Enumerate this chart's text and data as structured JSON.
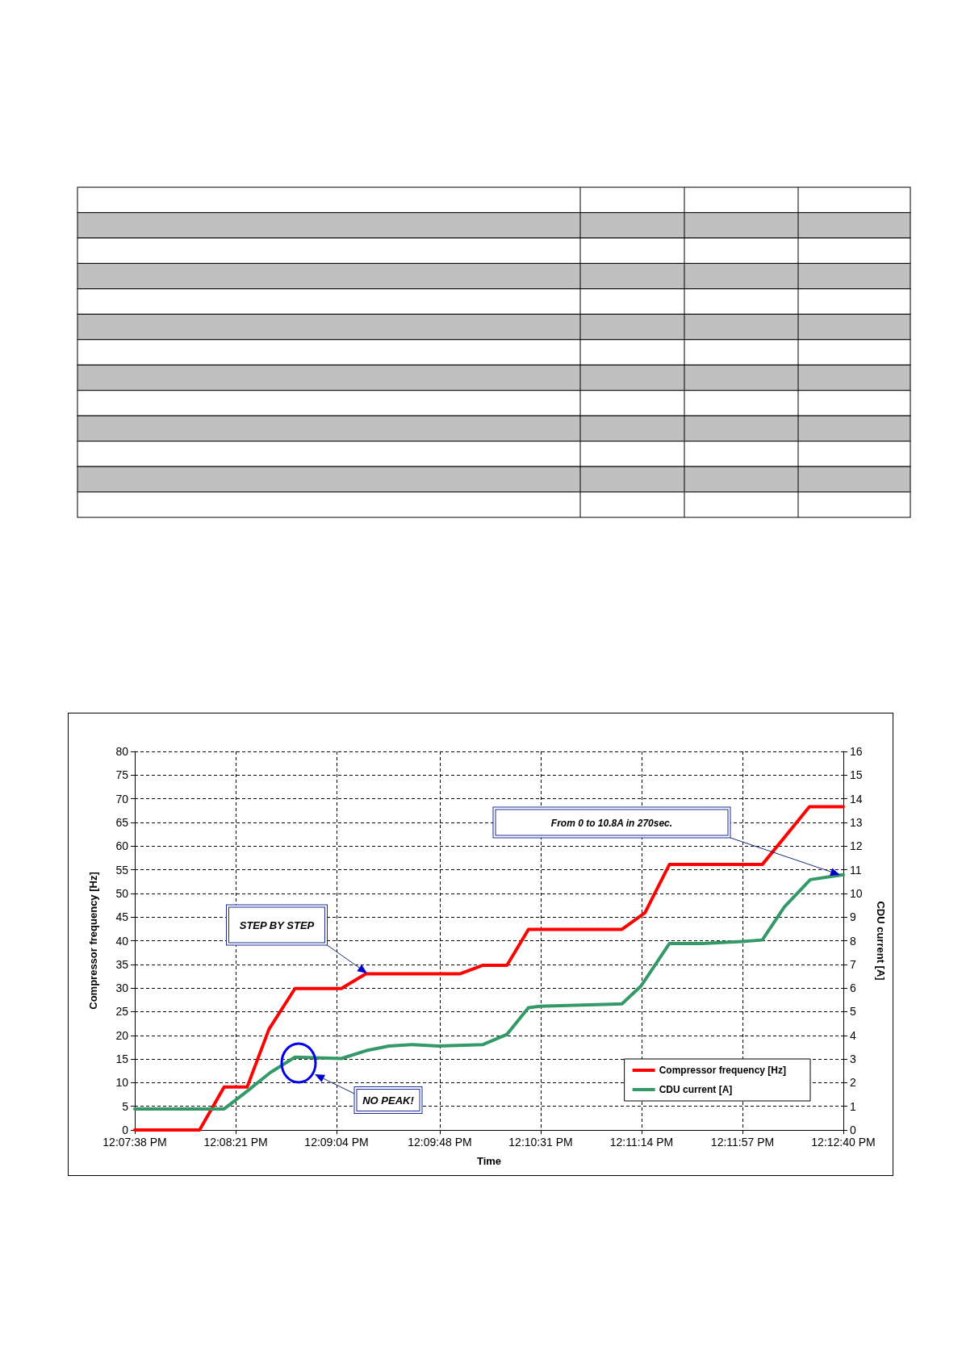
{
  "chart_data": {
    "type": "line",
    "xlabel": "Time",
    "ylabel": "Compressor frequency [Hz]",
    "y2label": "CDU current [A]",
    "xlim": [
      12.12722,
      12.21111
    ],
    "xticks": [
      {
        "value": 12.12722,
        "label": "12:07:38 PM"
      },
      {
        "value": 12.13917,
        "label": "12:08:21 PM"
      },
      {
        "value": 12.15111,
        "label": "12:09:04 PM"
      },
      {
        "value": 12.16333,
        "label": "12:09:48 PM"
      },
      {
        "value": 12.17528,
        "label": "12:10:31 PM"
      },
      {
        "value": 12.18722,
        "label": "12:11:14 PM"
      },
      {
        "value": 12.19917,
        "label": "12:11:57 PM"
      },
      {
        "value": 12.21111,
        "label": "12:12:40 PM"
      }
    ],
    "ylim": [
      0,
      80
    ],
    "yticks": [
      0,
      5,
      10,
      15,
      20,
      25,
      30,
      35,
      40,
      45,
      50,
      55,
      60,
      65,
      70,
      75,
      80
    ],
    "y2lim": [
      0,
      16
    ],
    "y2ticks": [
      0,
      1,
      2,
      3,
      4,
      5,
      6,
      7,
      8,
      9,
      10,
      11,
      12,
      13,
      14,
      15,
      16
    ],
    "grid": true,
    "legend": "bottom right",
    "marker": "none",
    "line_style": "solid",
    "series": [
      {
        "name": "Compressor frequency [Hz]",
        "color": "#ff0000",
        "x": [
          12.12722,
          12.13489,
          12.1378,
          12.14053,
          12.14311,
          12.14619,
          12.15167,
          12.15458,
          12.1657,
          12.16844,
          12.17128,
          12.17383,
          12.1849,
          12.18762,
          12.19051,
          12.20151,
          12.20709,
          12.21111
        ],
        "values": [
          0,
          0,
          9.1,
          9.1,
          21.3,
          29.9,
          29.9,
          33,
          33,
          34.8,
          34.8,
          42.4,
          42.4,
          45.9,
          56.1,
          56.1,
          68.3,
          68.3
        ]
      },
      {
        "name": "CDU current [A]",
        "color": "#339966",
        "axis": "y2",
        "x": [
          12.12722,
          12.1378,
          12.14053,
          12.14328,
          12.14619,
          12.15167,
          12.15458,
          12.15731,
          12.16006,
          12.16314,
          12.16844,
          12.17128,
          12.17383,
          12.17516,
          12.1849,
          12.18714,
          12.19051,
          12.19443,
          12.19912,
          12.20151,
          12.20413,
          12.20719,
          12.21111
        ],
        "values": [
          0.89,
          0.89,
          1.64,
          2.43,
          3.08,
          3.02,
          3.35,
          3.55,
          3.61,
          3.55,
          3.61,
          4.04,
          5.17,
          5.23,
          5.33,
          6.08,
          7.88,
          7.88,
          7.97,
          8.03,
          9.43,
          10.58,
          10.79
        ]
      }
    ],
    "annotations": [
      "STEP BY STEP",
      "NO PEAK!",
      "From 0 to 10.8A in 270sec."
    ]
  }
}
